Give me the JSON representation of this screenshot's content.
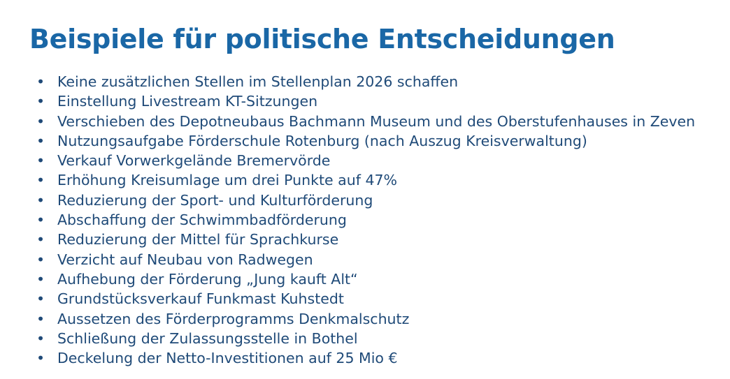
{
  "title": "Beispiele für politische Entscheidungen",
  "items": [
    "Keine zusätzlichen Stellen im Stellenplan 2026 schaffen",
    "Einstellung Livestream KT-Sitzungen",
    "Verschieben des Depotneubaus Bachmann Museum und des Oberstufenhauses in Zeven",
    "Nutzungsaufgabe Förderschule Rotenburg (nach Auszug Kreisverwaltung)",
    "Verkauf Vorwerkgelände Bremervörde",
    "Erhöhung Kreisumlage um drei Punkte auf 47%",
    "Reduzierung der Sport- und Kulturförderung",
    "Abschaffung der Schwimmbadförderung",
    "Reduzierung der Mittel für Sprachkurse",
    "Verzicht auf Neubau von Radwegen",
    "Aufhebung der Förderung „Jung kauft Alt“",
    "Grundstücksverkauf Funkmast Kuhstedt",
    "Aussetzen des Förderprogramms Denkmalschutz",
    "Schließung der Zulassungsstelle in Bothel",
    "Deckelung der Netto-Investitionen auf 25 Mio €"
  ]
}
